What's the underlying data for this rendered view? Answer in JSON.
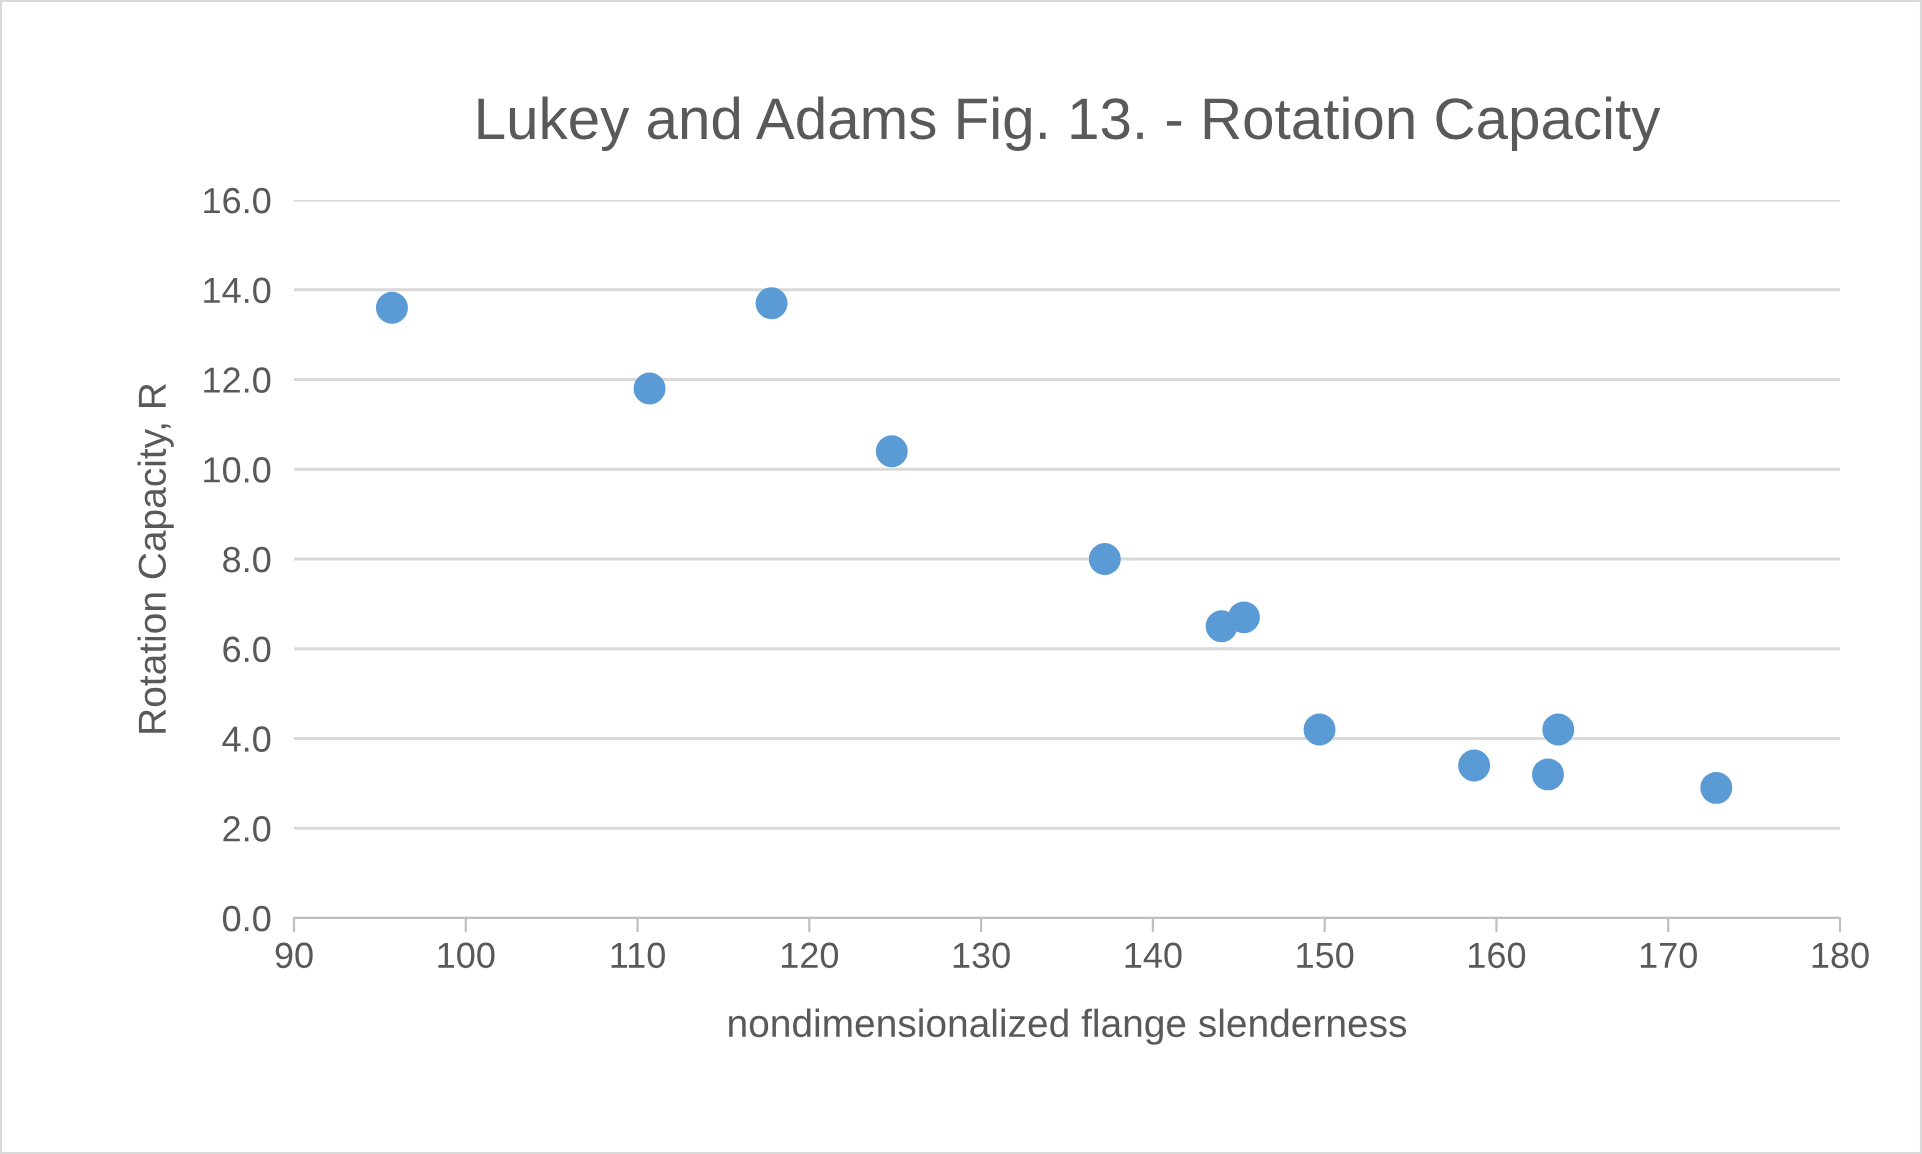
{
  "chart_data": {
    "type": "scatter",
    "title": "Lukey and Adams Fig. 13. - Rotation Capacity",
    "xlabel": "nondimensionalized flange slenderness",
    "ylabel": "Rotation Capacity, R",
    "x": [
      95.7,
      110.7,
      117.8,
      124.8,
      137.2,
      144.0,
      145.3,
      149.7,
      158.7,
      163.0,
      163.6,
      172.8
    ],
    "values": [
      13.6,
      11.8,
      13.7,
      10.4,
      8.0,
      6.5,
      6.7,
      4.2,
      3.4,
      3.2,
      4.2,
      2.9
    ],
    "color": "#5b9bd5",
    "marker": "circle",
    "xlim": [
      90,
      180
    ],
    "xticks": [
      90,
      100,
      110,
      120,
      130,
      140,
      150,
      160,
      170,
      180
    ],
    "ylim": [
      0,
      16
    ],
    "yticks": [
      {
        "value": 0,
        "label": "0.0"
      },
      {
        "value": 2,
        "label": "2.0"
      },
      {
        "value": 4,
        "label": "4.0"
      },
      {
        "value": 6,
        "label": "6.0"
      },
      {
        "value": 8,
        "label": "8.0"
      },
      {
        "value": 10,
        "label": "10.0"
      },
      {
        "value": 12,
        "label": "12.0"
      },
      {
        "value": 14,
        "label": "14.0"
      },
      {
        "value": 16,
        "label": "16.0"
      }
    ],
    "grid": "y"
  }
}
